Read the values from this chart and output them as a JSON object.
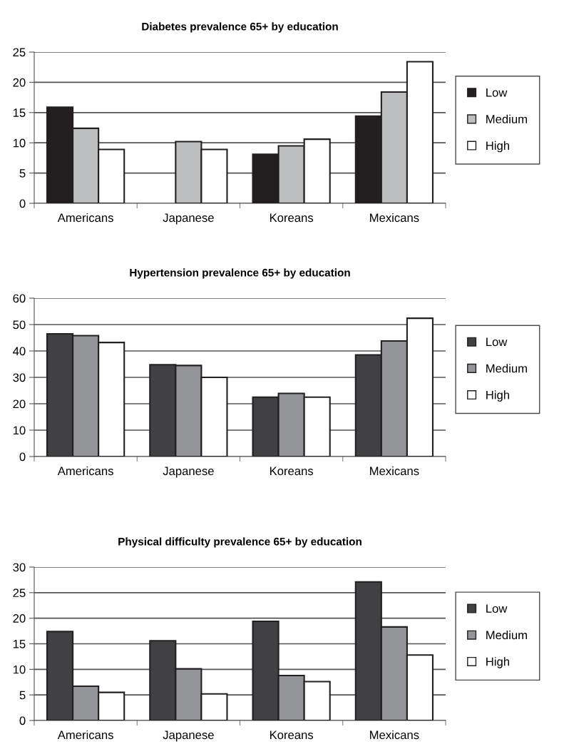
{
  "chart_data": [
    {
      "type": "bar",
      "title": "Diabetes prevalence 65+ by education",
      "categories": [
        "Americans",
        "Japanese",
        "Koreans",
        "Mexicans"
      ],
      "series": [
        {
          "name": "Low",
          "color": "#231f20",
          "values": [
            15.9,
            null,
            8.1,
            14.4
          ]
        },
        {
          "name": "Medium",
          "color": "#bcbec0",
          "values": [
            12.4,
            10.2,
            9.5,
            18.4
          ]
        },
        {
          "name": "High",
          "color": "#ffffff",
          "values": [
            8.9,
            8.9,
            10.6,
            23.4
          ]
        }
      ],
      "ylim": [
        0,
        25
      ],
      "yticks": [
        0,
        5,
        10,
        15,
        20,
        25
      ],
      "grid": "y",
      "legend": "right"
    },
    {
      "type": "bar",
      "title": "Hypertension prevalence 65+ by education",
      "categories": [
        "Americans",
        "Japanese",
        "Koreans",
        "Mexicans"
      ],
      "series": [
        {
          "name": "Low",
          "color": "#414042",
          "values": [
            46.5,
            34.8,
            22.5,
            38.5
          ]
        },
        {
          "name": "Medium",
          "color": "#939598",
          "values": [
            45.8,
            34.5,
            23.9,
            43.8
          ]
        },
        {
          "name": "High",
          "color": "#ffffff",
          "values": [
            43.2,
            30.0,
            22.5,
            52.4
          ]
        }
      ],
      "ylim": [
        0,
        60
      ],
      "yticks": [
        0,
        10,
        20,
        30,
        40,
        50,
        60
      ],
      "grid": "y",
      "legend": "right"
    },
    {
      "type": "bar",
      "title": "Physical difficulty prevalence 65+ by education",
      "categories": [
        "Americans",
        "Japanese",
        "Koreans",
        "Mexicans"
      ],
      "series": [
        {
          "name": "Low",
          "color": "#414042",
          "values": [
            17.4,
            15.6,
            19.4,
            27.1
          ]
        },
        {
          "name": "Medium",
          "color": "#939598",
          "values": [
            6.7,
            10.1,
            8.8,
            18.3
          ]
        },
        {
          "name": "High",
          "color": "#ffffff",
          "values": [
            5.5,
            5.2,
            7.6,
            12.8
          ]
        }
      ],
      "ylim": [
        0,
        30
      ],
      "yticks": [
        0,
        5,
        10,
        15,
        20,
        25,
        30
      ],
      "grid": "y",
      "legend": "right"
    }
  ]
}
